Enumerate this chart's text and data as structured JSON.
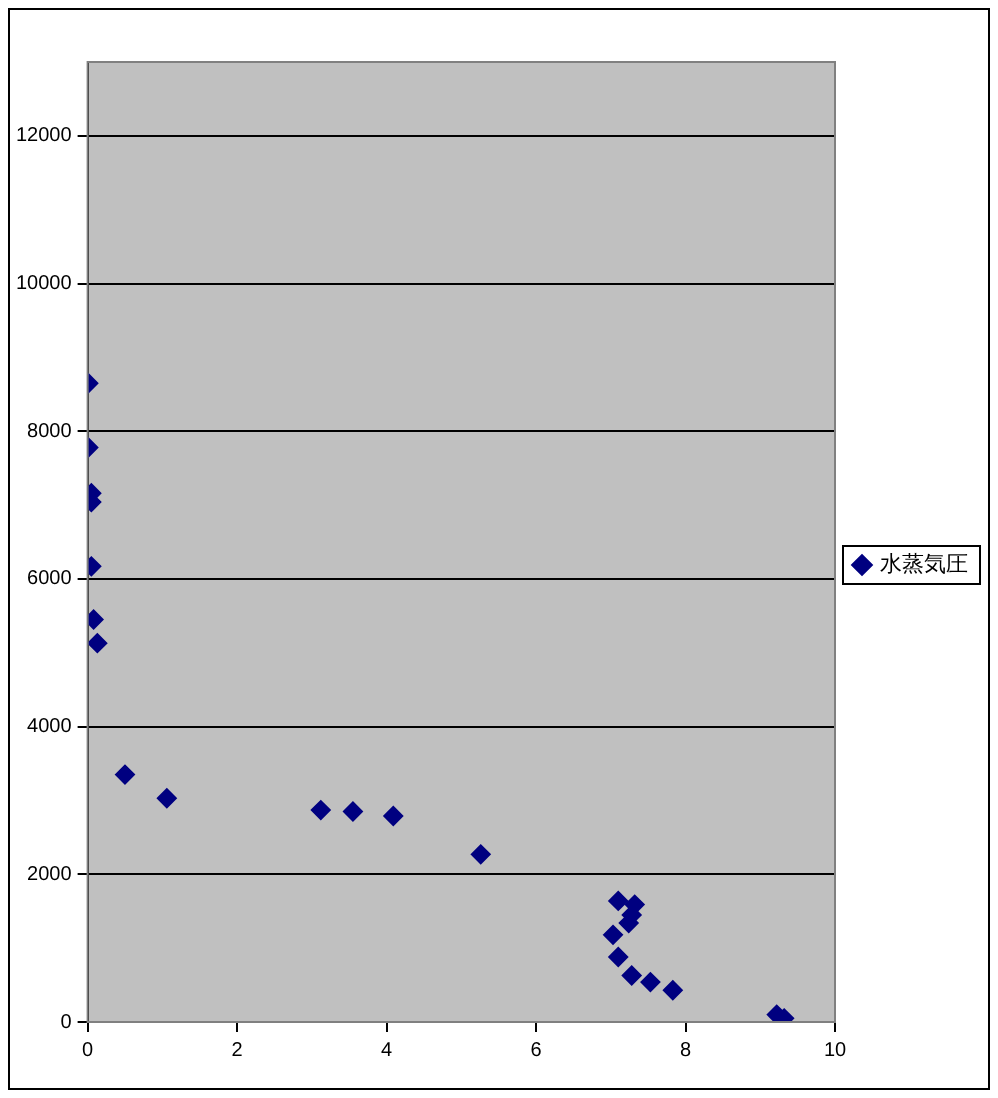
{
  "chart_data": {
    "type": "scatter",
    "xlim": [
      0,
      10
    ],
    "xticks": [
      0,
      2,
      4,
      6,
      8,
      10
    ],
    "ylim": [
      0,
      13000
    ],
    "yticks": [
      0,
      2000,
      4000,
      6000,
      8000,
      10000,
      12000
    ],
    "grid": "y",
    "legend": "right",
    "marker": "diamond",
    "series": [
      {
        "name": "水蒸気圧",
        "color": "#000080",
        "x": [
          0.01,
          0.01,
          0.05,
          0.05,
          0.05,
          0.08,
          0.13,
          0.5,
          1.06,
          3.12,
          3.55,
          4.09,
          5.26,
          7.1,
          7.32,
          7.28,
          7.24,
          7.03,
          7.1,
          7.28,
          7.53,
          7.83,
          9.22,
          9.32
        ],
        "values": [
          8650,
          7780,
          7160,
          7040,
          6170,
          5450,
          5130,
          3350,
          3030,
          2870,
          2850,
          2790,
          2270,
          1640,
          1590,
          1450,
          1340,
          1180,
          880,
          630,
          540,
          430,
          100,
          50
        ]
      }
    ]
  }
}
